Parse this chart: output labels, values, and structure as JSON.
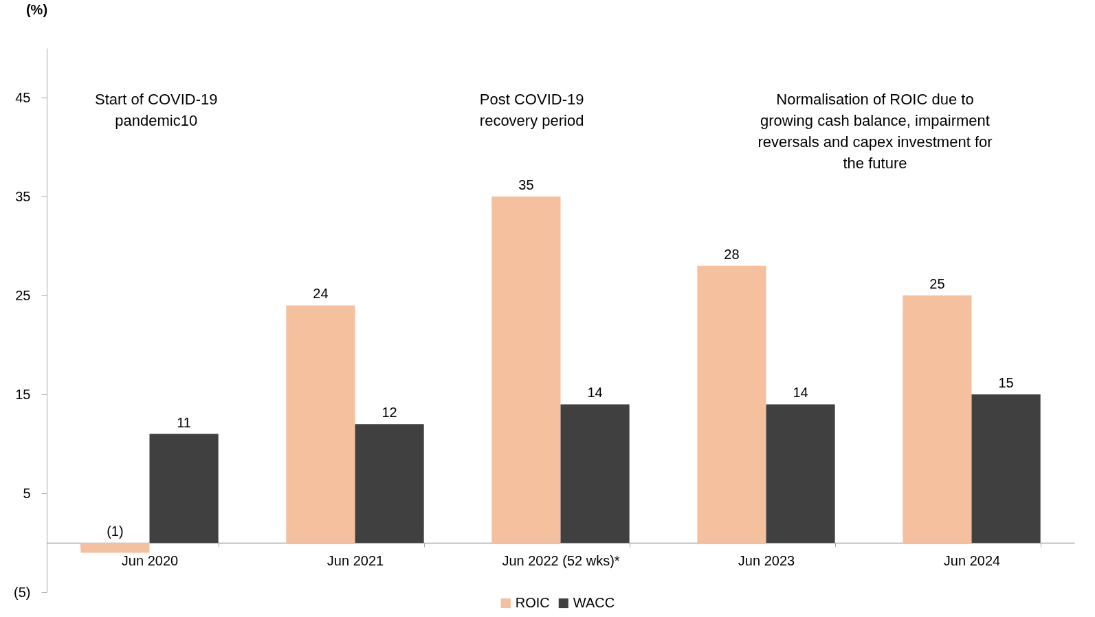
{
  "chart_data": {
    "type": "bar",
    "ylabel": "(%)",
    "categories": [
      "Jun 2020",
      "Jun 2021",
      "Jun 2022 (52 wks)*",
      "Jun 2023",
      "Jun 2024"
    ],
    "series": [
      {
        "name": "ROIC",
        "color": "#f5c09e",
        "values": [
          -1,
          24,
          35,
          28,
          25
        ],
        "value_labels": [
          "(1)",
          "24",
          "35",
          "28",
          "25"
        ]
      },
      {
        "name": "WACC",
        "color": "#404040",
        "values": [
          11,
          12,
          14,
          14,
          15
        ],
        "value_labels": [
          "11",
          "12",
          "14",
          "14",
          "15"
        ]
      }
    ],
    "ylim": [
      -5,
      50
    ],
    "yticks": [
      {
        "value": -5,
        "label": "(5)"
      },
      5,
      15,
      25,
      35,
      45
    ],
    "grid": false,
    "legend": "bottom",
    "annotations": [
      "Start of COVID-19 pandemic10",
      "Post COVID-19 recovery period",
      "Normalisation of ROIC due to growing cash balance, impairment reversals and capex investment for the future"
    ]
  }
}
